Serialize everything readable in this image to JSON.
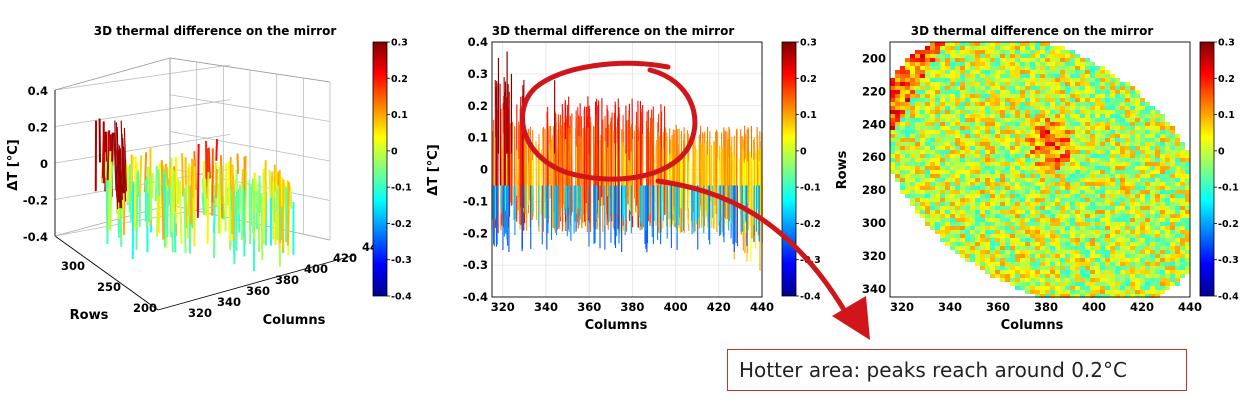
{
  "callout": "Hotter area: peaks reach around 0.2°C",
  "colormap": [
    "#00008f",
    "#0000ff",
    "#0080ff",
    "#00ffff",
    "#80ff80",
    "#ffff00",
    "#ff8000",
    "#ff0000",
    "#800000"
  ],
  "annotation_color": "#d0161b",
  "chart_data": [
    {
      "type": "surface-3d",
      "title": "3D thermal difference on the mirror",
      "zlabel": "ΔT [°C]",
      "xlabel": "Columns",
      "ylabel": "Rows",
      "z_ticks": [
        "0.4",
        "0.2",
        "0",
        "-0.2",
        "-0.4"
      ],
      "row_ticks": [
        "300",
        "250",
        "200"
      ],
      "col_ticks": [
        "320",
        "340",
        "360",
        "380",
        "400",
        "420",
        "440"
      ],
      "zlim": [
        -0.4,
        0.4
      ],
      "colorbar": {
        "range": [
          -0.4,
          0.3
        ],
        "ticks": [
          "0.3",
          "0.2",
          "0.1",
          "0",
          "-0.1",
          "-0.2",
          "-0.3",
          "-0.4"
        ]
      }
    },
    {
      "type": "line",
      "title": "3D thermal difference on the mirror",
      "xlabel": "Columns",
      "ylabel": "ΔT [°C]",
      "x_ticks": [
        "320",
        "340",
        "360",
        "380",
        "400",
        "420",
        "440"
      ],
      "y_ticks": [
        "0.4",
        "0.3",
        "0.2",
        "0.1",
        "0",
        "-0.1",
        "-0.2",
        "-0.3",
        "-0.4"
      ],
      "xlim": [
        315,
        440
      ],
      "ylim": [
        -0.4,
        0.4
      ],
      "grid": true,
      "colorbar": {
        "range": [
          -0.4,
          0.3
        ],
        "ticks": [
          "0.3",
          "0.2",
          "0.1",
          "0",
          "-0.1",
          "-0.2",
          "-0.3",
          "-0.4"
        ]
      }
    },
    {
      "type": "heatmap",
      "title": "3D thermal difference on the mirror",
      "xlabel": "Columns",
      "ylabel": "Rows",
      "x_ticks": [
        "320",
        "340",
        "360",
        "380",
        "400",
        "420",
        "440"
      ],
      "y_ticks": [
        "200",
        "220",
        "240",
        "260",
        "280",
        "300",
        "320",
        "340"
      ],
      "xlim": [
        315,
        440
      ],
      "ylim": [
        190,
        345
      ],
      "colorbar": {
        "range": [
          -0.4,
          0.3
        ],
        "ticks": [
          "0.3",
          "0.2",
          "0.1",
          "0",
          "-0.1",
          "-0.2",
          "-0.3",
          "-0.4"
        ]
      }
    }
  ]
}
